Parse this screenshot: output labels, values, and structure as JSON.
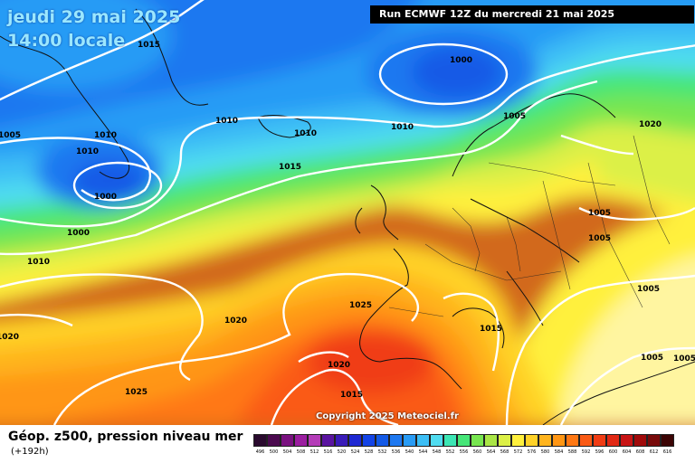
{
  "header": {
    "date": "jeudi 29 mai 2025",
    "time": "14:00 locale",
    "run": "Run ECMWF 12Z du mercredi 21 mai 2025"
  },
  "footer": {
    "title": "Géop. z500, pression niveau mer",
    "forecast_hour": "(+192h)",
    "copyright": "Copyright 2025 Meteociel.fr"
  },
  "legend": {
    "values": [
      "496",
      "500",
      "504",
      "508",
      "512",
      "516",
      "520",
      "524",
      "528",
      "532",
      "536",
      "540",
      "544",
      "548",
      "552",
      "556",
      "560",
      "564",
      "568",
      "572",
      "576",
      "580",
      "584",
      "588",
      "592",
      "596",
      "600",
      "604",
      "608",
      "612",
      "616"
    ],
    "colors": [
      "#2a0a2e",
      "#4b0a4f",
      "#7a1280",
      "#9b1ea0",
      "#b43cb8",
      "#5a14a0",
      "#3a1cb8",
      "#1e28d2",
      "#1444e6",
      "#145ae6",
      "#1e78f0",
      "#289bf5",
      "#3cbef5",
      "#50dcf0",
      "#3ce6b4",
      "#46e678",
      "#78e650",
      "#aae646",
      "#dcf046",
      "#fff03c",
      "#ffd228",
      "#ffb41e",
      "#ff9614",
      "#ff7814",
      "#fa5a14",
      "#f03c14",
      "#e12814",
      "#c81414",
      "#a00a0a",
      "#780a0a",
      "#3c0505"
    ]
  },
  "isobars": {
    "labels": [
      "1015",
      "1010",
      "1005",
      "1010",
      "1000",
      "1000",
      "1010",
      "1010",
      "1010",
      "1015",
      "1000",
      "1005",
      "1010",
      "1005",
      "1005",
      "1005",
      "1020",
      "1025",
      "1015",
      "1020",
      "1025",
      "1015",
      "1020",
      "1005",
      "1005",
      "1020"
    ]
  }
}
